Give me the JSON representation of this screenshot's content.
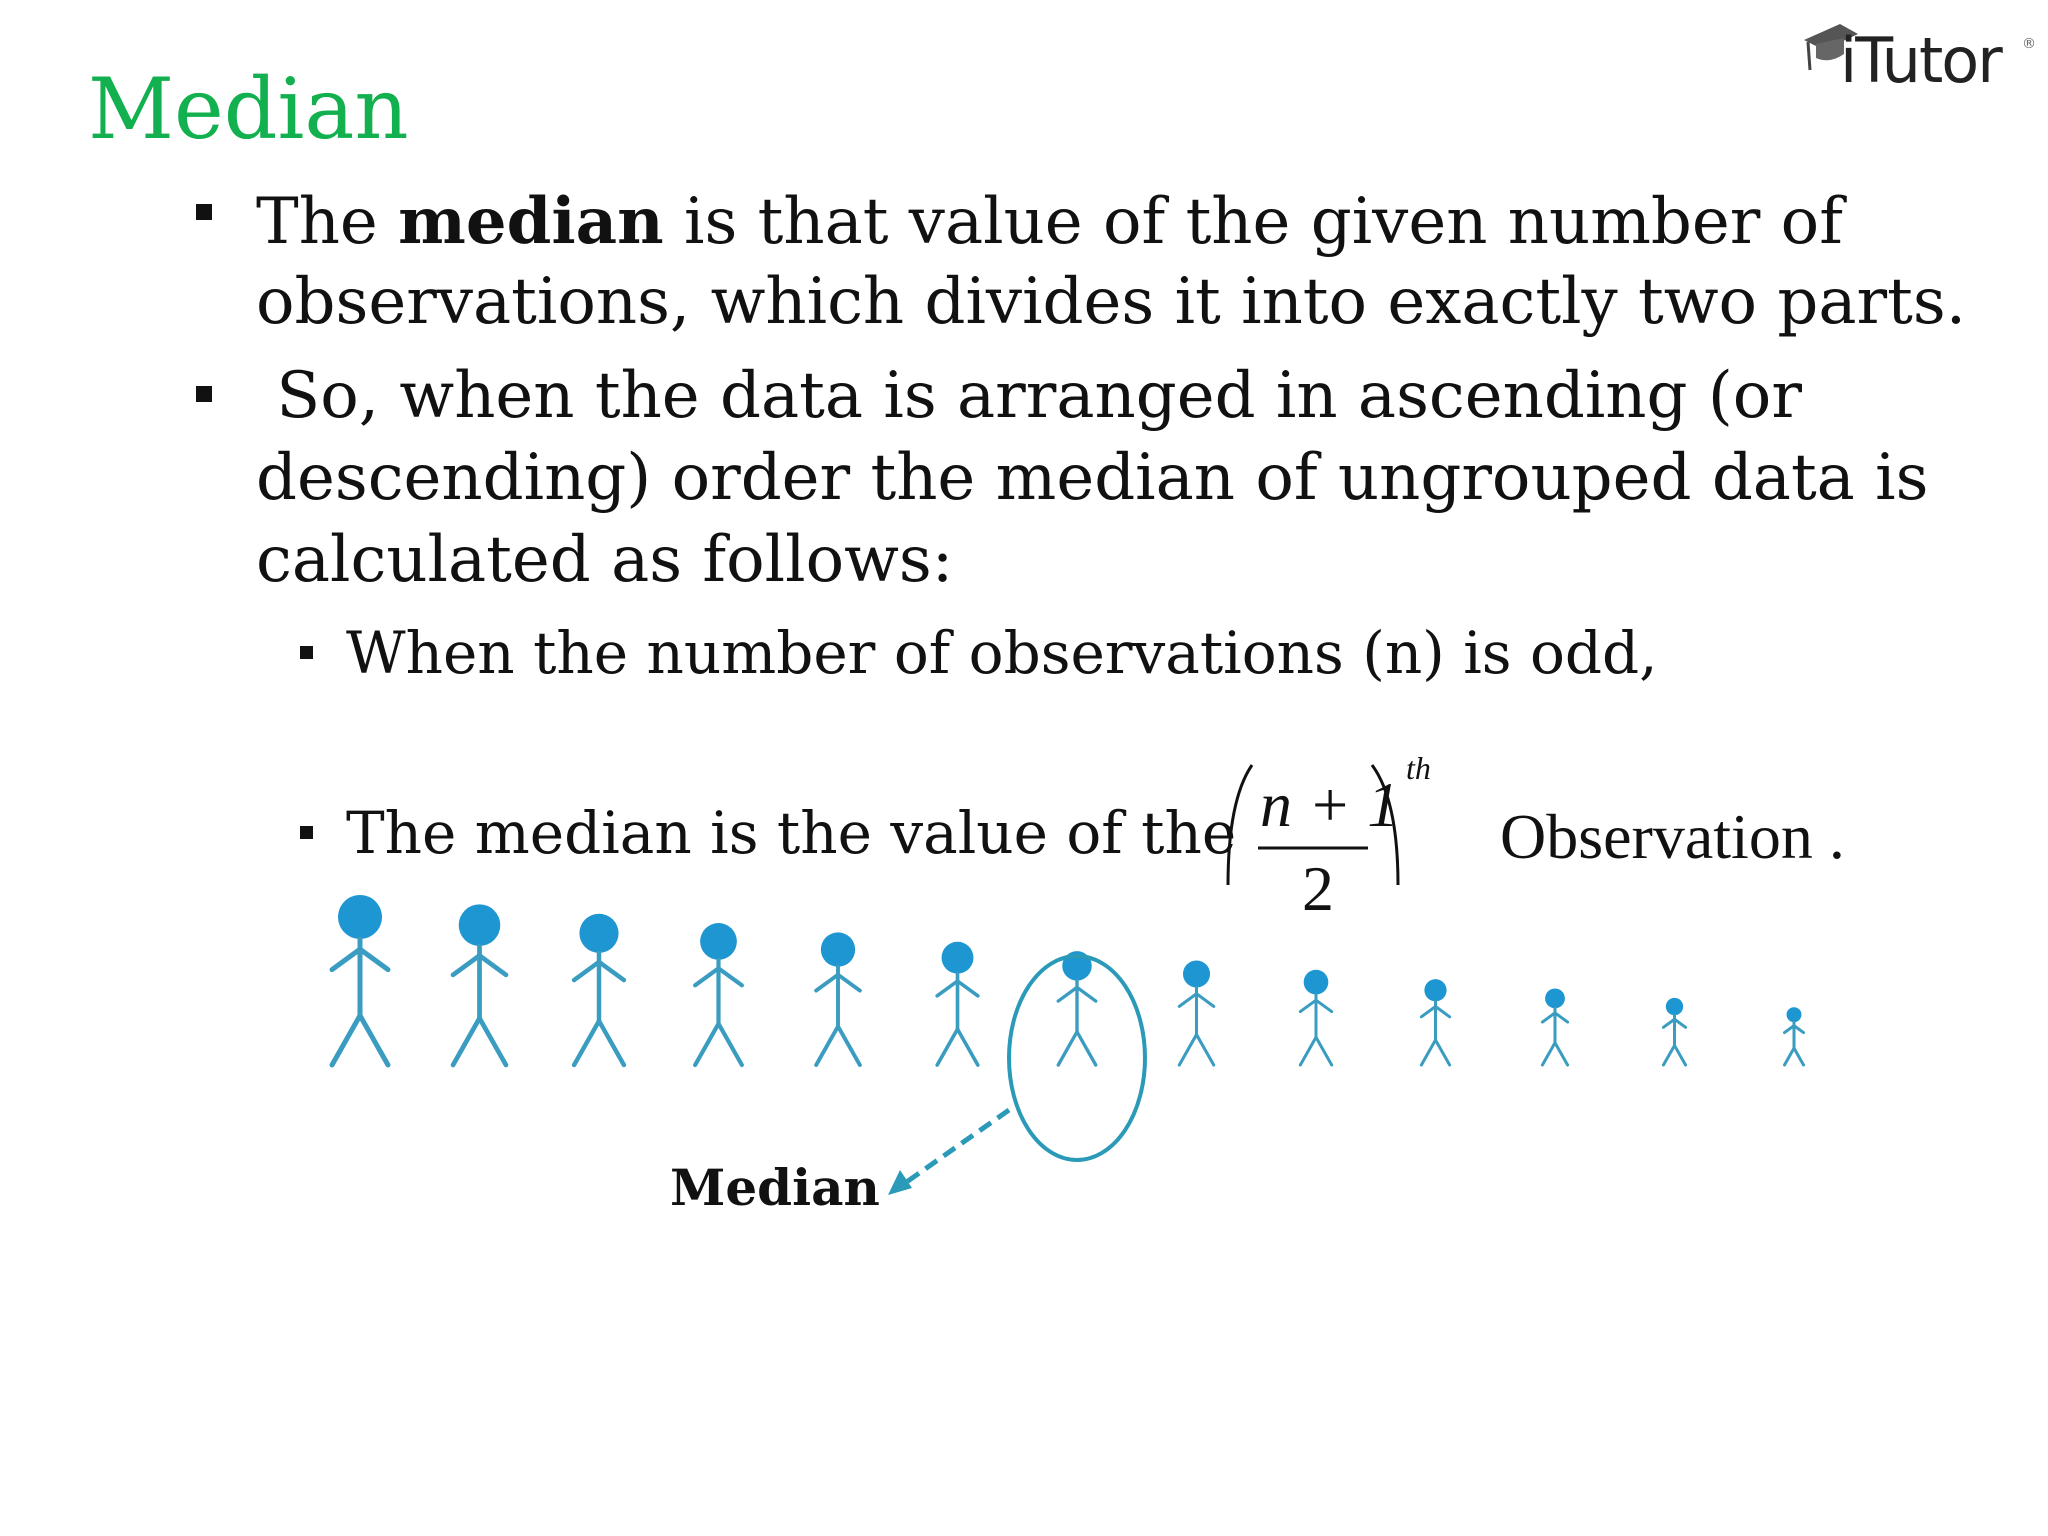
{
  "slide": {
    "title": "Median",
    "logo": {
      "text": "iTutor",
      "registered": "®",
      "icon": "graduation-cap-icon"
    },
    "bullets": [
      {
        "pre": "The ",
        "bold": "median",
        "line1_post": " is that value of the given number of",
        "line2": "observations, which divides it into exactly two parts."
      },
      {
        "line1": " So, when the data is arranged in ascending (or",
        "line2": "descending) order the median of ungrouped data is",
        "line3": "calculated as follows:"
      }
    ],
    "sub_bullets": [
      {
        "text": "When the number of observations (n) is odd,"
      },
      {
        "text": "The median is the value of the"
      }
    ],
    "formula": {
      "numerator": "n + 1",
      "denominator": "2",
      "superscript": "th"
    },
    "observation_text": "Observation .",
    "figure": {
      "figure_count": 13,
      "median_index": 7,
      "figure_color": "#1e96d2",
      "circle_color": "#2a9ab8",
      "median_label": "Median"
    },
    "colors": {
      "title": "#12b04e",
      "text": "#111111"
    }
  }
}
